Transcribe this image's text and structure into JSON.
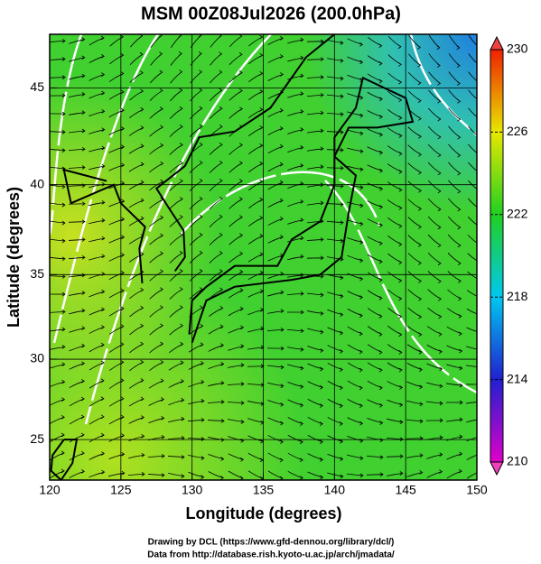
{
  "chart_data": {
    "type": "map",
    "title": "MSM 00Z08Jul2026 (200.0hPa)",
    "x_label": "Longitude (degrees)",
    "y_label": "Latitude  (degrees)",
    "xlim": [
      120,
      150
    ],
    "xticks": [
      120,
      125,
      130,
      135,
      140,
      145,
      150
    ],
    "ylim": [
      22.4,
      47.6
    ],
    "yticks": [
      25,
      30,
      35,
      40,
      45
    ],
    "y_scale": "mercator",
    "grid": true,
    "colorbar": {
      "lim": [
        210,
        230
      ],
      "ticks": [
        210,
        214,
        218,
        222,
        226,
        230
      ]
    },
    "footer": [
      "Drawing by DCL (https://www.gfd-dennou.org/library/dcl/)",
      "Data from http://database.rish.kyoto-u.ac.jp/arch/jmadata/"
    ]
  }
}
